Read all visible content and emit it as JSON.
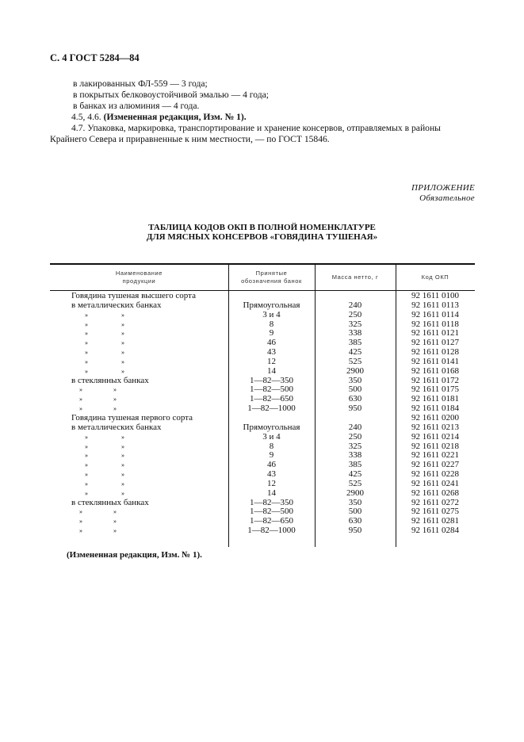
{
  "header": "С. 4  ГОСТ 5284—84",
  "paragraphs": [
    "в лакированных ФЛ-559 — 3 года;",
    "в покрытых белковоустойчивой эмалью — 4 года;",
    "в банках из алюминия — 4 года."
  ],
  "p45_prefix": "4.5, 4.6. ",
  "p45_bold": "(Измененная редакция, Изм. № 1).",
  "p47_line1": "4.7. Упаковка, маркировка, транспортирование и хранение консервов, отправляемых в районы",
  "p47_line2": "Крайнего Севера и приравненные к ним местности, — по ГОСТ 15846.",
  "appendix": {
    "label": "ПРИЛОЖЕНИЕ",
    "note": "Обязательное"
  },
  "table_title": [
    "ТАБЛИЦА КОДОВ ОКП В ПОЛНОЙ НОМЕНКЛАТУРЕ",
    "ДЛЯ МЯСНЫХ КОНСЕРВОВ «ГОВЯДИНА ТУШЕНАЯ»"
  ],
  "columns": {
    "c1a": "Наименование",
    "c1b": "продукции",
    "c2a": "Принятые",
    "c2b": "обозначения банок",
    "c3": "Масса нетто, г",
    "c4": "Код ОКП"
  },
  "ditto": "»",
  "rows": [
    {
      "name": "Говядина тушеная высшего сорта",
      "can": "",
      "mass": "",
      "code": "92 1611 0100"
    },
    {
      "name": "в металлических банках",
      "can": "Прямоугольная",
      "mass": "240",
      "code": "92 1611 0113"
    },
    {
      "ditto": "m",
      "can": "3 и 4",
      "mass": "250",
      "code": "92 1611 0114"
    },
    {
      "ditto": "m",
      "can": "8",
      "mass": "325",
      "code": "92 1611 0118"
    },
    {
      "ditto": "m",
      "can": "9",
      "mass": "338",
      "code": "92 1611 0121"
    },
    {
      "ditto": "m",
      "can": "46",
      "mass": "385",
      "code": "92 1611 0127"
    },
    {
      "ditto": "m",
      "can": "43",
      "mass": "425",
      "code": "92 1611 0128"
    },
    {
      "ditto": "m",
      "can": "12",
      "mass": "525",
      "code": "92 1611 0141"
    },
    {
      "ditto": "m",
      "can": "14",
      "mass": "2900",
      "code": "92 1611 0168"
    },
    {
      "name": "в стеклянных банках",
      "can": "1—82—350",
      "mass": "350",
      "code": "92 1611 0172"
    },
    {
      "ditto": "g",
      "can": "1—82—500",
      "mass": "500",
      "code": "92 1611 0175"
    },
    {
      "ditto": "g",
      "can": "1—82—650",
      "mass": "630",
      "code": "92 1611 0181"
    },
    {
      "ditto": "g",
      "can": "1—82—1000",
      "mass": "950",
      "code": "92 1611 0184"
    },
    {
      "name": "Говядина тушеная первого сорта",
      "can": "",
      "mass": "",
      "code": "92 1611 0200"
    },
    {
      "name": "в металлических банках",
      "can": "Прямоугольная",
      "mass": "240",
      "code": "92 1611 0213"
    },
    {
      "ditto": "m",
      "can": "3 и 4",
      "mass": "250",
      "code": "92 1611 0214"
    },
    {
      "ditto": "m",
      "can": "8",
      "mass": "325",
      "code": "92 1611 0218"
    },
    {
      "ditto": "m",
      "can": "9",
      "mass": "338",
      "code": "92 1611 0221"
    },
    {
      "ditto": "m",
      "can": "46",
      "mass": "385",
      "code": "92 1611 0227"
    },
    {
      "ditto": "m",
      "can": "43",
      "mass": "425",
      "code": "92 1611 0228"
    },
    {
      "ditto": "m",
      "can": "12",
      "mass": "525",
      "code": "92 1611 0241"
    },
    {
      "ditto": "m",
      "can": "14",
      "mass": "2900",
      "code": "92 1611 0268"
    },
    {
      "name": "в стеклянных банках",
      "can": "1—82—350",
      "mass": "350",
      "code": "92 1611 0272"
    },
    {
      "ditto": "g",
      "can": "1—82—500",
      "mass": "500",
      "code": "92 1611 0275"
    },
    {
      "ditto": "g",
      "can": "1—82—650",
      "mass": "630",
      "code": "92 1611 0281"
    },
    {
      "ditto": "g",
      "can": "1—82—1000",
      "mass": "950",
      "code": "92 1611 0284"
    }
  ],
  "footnote": "(Измененная редакция, Изм. № 1)."
}
